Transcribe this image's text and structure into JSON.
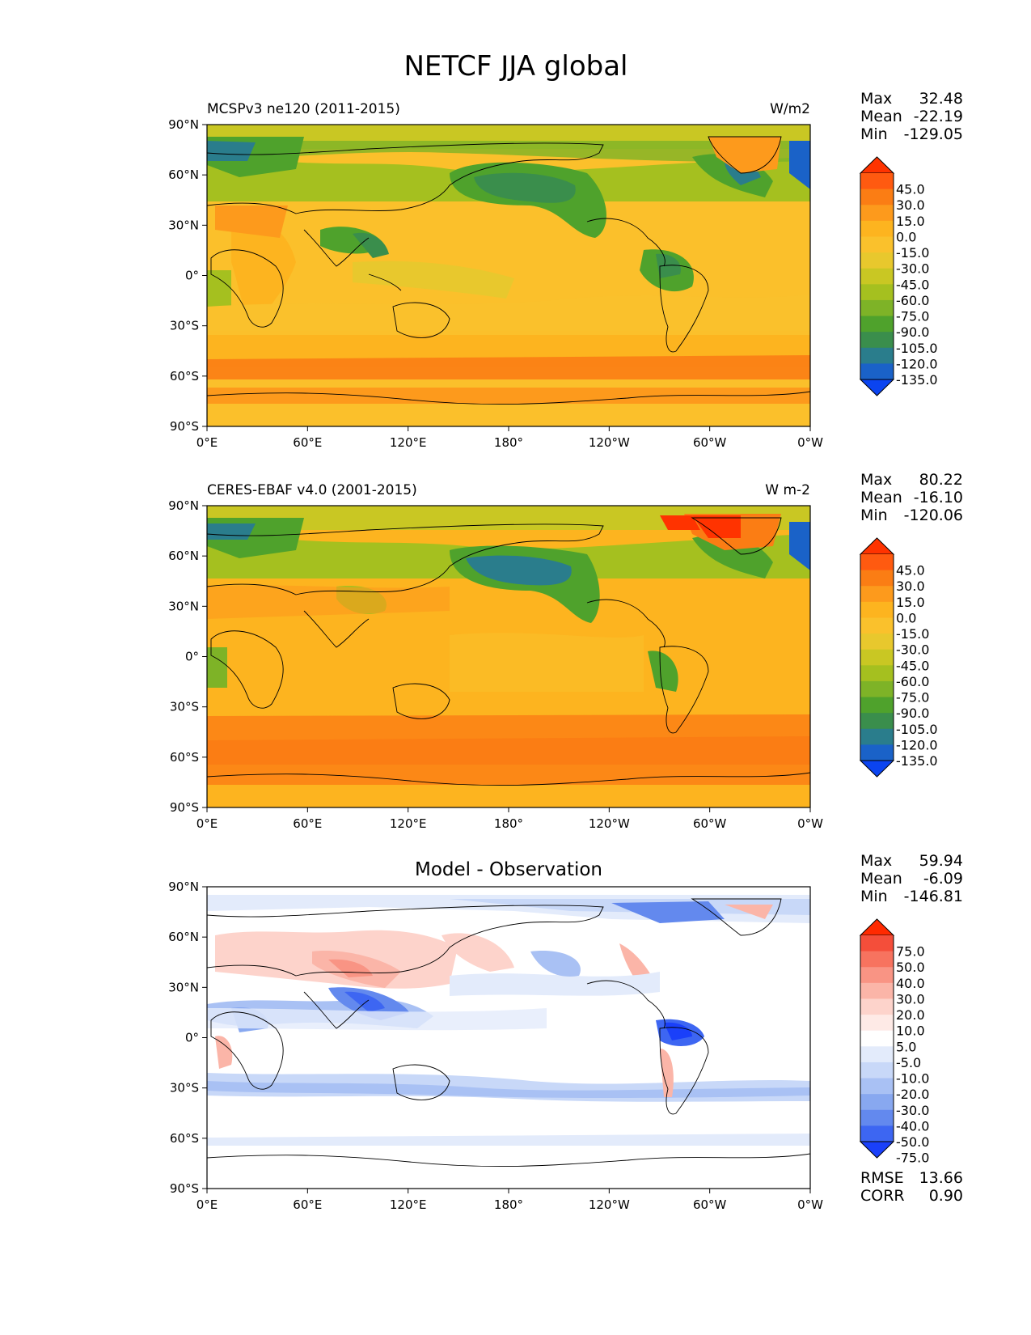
{
  "figure": {
    "title": "NETCF JJA global"
  },
  "lat_ticks": [
    "90°N",
    "60°N",
    "30°N",
    "0°",
    "30°S",
    "60°S",
    "90°S"
  ],
  "lon_ticks": [
    "0°E",
    "60°E",
    "120°E",
    "180°",
    "120°W",
    "60°W",
    "0°W"
  ],
  "panels": [
    {
      "id": "model",
      "left_title": "MCSPv3 ne120 (2011-2015)",
      "right_title": "W/m2",
      "center_title": "",
      "stats": [
        {
          "label": "Max",
          "value": "32.48"
        },
        {
          "label": "Mean",
          "value": "-22.19"
        },
        {
          "label": "Min",
          "value": "-129.05"
        }
      ],
      "colorbar_labels": [
        "45.0",
        "30.0",
        "15.0",
        "0.0",
        "-15.0",
        "-30.0",
        "-45.0",
        "-60.0",
        "-75.0",
        "-90.0",
        "-105.0",
        "-120.0",
        "-135.0"
      ],
      "colorbar_colors": [
        "#ff3300",
        "#ff5a10",
        "#fb7d14",
        "#fd9a1c",
        "#fdb41f",
        "#fac12c",
        "#e8c82d",
        "#c9c723",
        "#a5c01f",
        "#7eb327",
        "#4fa22c",
        "#3a8e4c",
        "#2a7d8c",
        "#1a62c8",
        "#0b44f0"
      ]
    },
    {
      "id": "obs",
      "left_title": "CERES-EBAF v4.0 (2001-2015)",
      "right_title": "W m-2",
      "center_title": "",
      "stats": [
        {
          "label": "Max",
          "value": "80.22"
        },
        {
          "label": "Mean",
          "value": "-16.10"
        },
        {
          "label": "Min",
          "value": "-120.06"
        }
      ],
      "colorbar_labels": [
        "45.0",
        "30.0",
        "15.0",
        "0.0",
        "-15.0",
        "-30.0",
        "-45.0",
        "-60.0",
        "-75.0",
        "-90.0",
        "-105.0",
        "-120.0",
        "-135.0"
      ],
      "colorbar_colors": [
        "#ff3300",
        "#ff5a10",
        "#fb7d14",
        "#fd9a1c",
        "#fdb41f",
        "#fac12c",
        "#e8c82d",
        "#c9c723",
        "#a5c01f",
        "#7eb327",
        "#4fa22c",
        "#3a8e4c",
        "#2a7d8c",
        "#1a62c8",
        "#0b44f0"
      ]
    },
    {
      "id": "diff",
      "left_title": "",
      "right_title": "",
      "center_title": "Model - Observation",
      "stats": [
        {
          "label": "Max",
          "value": "59.94"
        },
        {
          "label": "Mean",
          "value": "-6.09"
        },
        {
          "label": "Min",
          "value": "-146.81"
        }
      ],
      "extra_stats": [
        {
          "label": "RMSE",
          "value": "13.66"
        },
        {
          "label": "CORR",
          "value": "0.90"
        }
      ],
      "colorbar_labels": [
        "75.0",
        "50.0",
        "40.0",
        "30.0",
        "20.0",
        "10.0",
        "5.0",
        "-5.0",
        "-10.0",
        "-20.0",
        "-30.0",
        "-40.0",
        "-50.0",
        "-75.0"
      ],
      "colorbar_colors": [
        "#ff2a00",
        "#f44e3a",
        "#f7735f",
        "#f99484",
        "#fbb5a8",
        "#fdd3cb",
        "#feeae6",
        "#ffffff",
        "#e3ebfb",
        "#c8d8f8",
        "#a9c1f4",
        "#88a8f0",
        "#6389ee",
        "#3d66f2",
        "#1a40fa"
      ]
    }
  ]
}
